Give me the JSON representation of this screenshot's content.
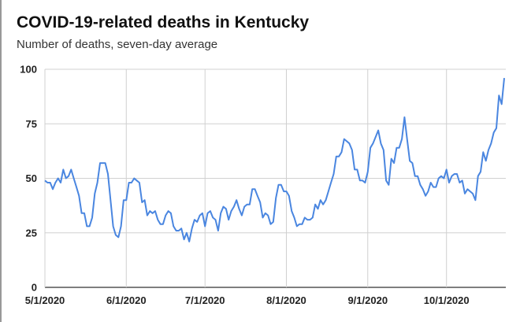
{
  "chart_data": {
    "type": "line",
    "title": "COVID-19-related deaths in Kentucky",
    "subtitle": "Number of deaths, seven-day average",
    "xlabel": "",
    "ylabel": "",
    "ylim": [
      0,
      100
    ],
    "xlim": [
      "2020-05-01",
      "2020-10-23"
    ],
    "yticks": [
      0,
      25,
      50,
      75,
      100
    ],
    "ytick_labels": [
      "0",
      "25",
      "50",
      "75",
      "100"
    ],
    "xticks": [
      "2020-05-01",
      "2020-06-01",
      "2020-07-01",
      "2020-08-01",
      "2020-09-01",
      "2020-10-01"
    ],
    "xtick_labels": [
      "5/1/2020",
      "6/1/2020",
      "7/1/2020",
      "8/1/2020",
      "9/1/2020",
      "10/1/2020"
    ],
    "grid": true,
    "legend": "none",
    "colors": {
      "line": "#4a86e0",
      "grid": "#d0d0d0",
      "axis": "#333333"
    },
    "series": [
      {
        "points": [
          [
            "2020-05-01",
            49
          ],
          [
            "2020-05-02",
            48
          ],
          [
            "2020-05-03",
            48
          ],
          [
            "2020-05-04",
            45
          ],
          [
            "2020-05-05",
            48
          ],
          [
            "2020-05-06",
            50
          ],
          [
            "2020-05-07",
            48
          ],
          [
            "2020-05-08",
            54
          ],
          [
            "2020-05-09",
            50
          ],
          [
            "2020-05-10",
            51
          ],
          [
            "2020-05-11",
            54
          ],
          [
            "2020-05-12",
            50
          ],
          [
            "2020-05-13",
            46
          ],
          [
            "2020-05-14",
            42
          ],
          [
            "2020-05-15",
            34
          ],
          [
            "2020-05-16",
            34
          ],
          [
            "2020-05-17",
            28
          ],
          [
            "2020-05-18",
            28
          ],
          [
            "2020-05-19",
            32
          ],
          [
            "2020-05-20",
            43
          ],
          [
            "2020-05-21",
            48
          ],
          [
            "2020-05-22",
            57
          ],
          [
            "2020-05-23",
            57
          ],
          [
            "2020-05-24",
            57
          ],
          [
            "2020-05-25",
            52
          ],
          [
            "2020-05-26",
            40
          ],
          [
            "2020-05-27",
            28
          ],
          [
            "2020-05-28",
            24
          ],
          [
            "2020-05-29",
            23
          ],
          [
            "2020-05-30",
            28
          ],
          [
            "2020-05-31",
            40
          ],
          [
            "2020-06-01",
            40
          ],
          [
            "2020-06-02",
            48
          ],
          [
            "2020-06-03",
            48
          ],
          [
            "2020-06-04",
            50
          ],
          [
            "2020-06-05",
            49
          ],
          [
            "2020-06-06",
            48
          ],
          [
            "2020-06-07",
            39
          ],
          [
            "2020-06-08",
            40
          ],
          [
            "2020-06-09",
            33
          ],
          [
            "2020-06-10",
            35
          ],
          [
            "2020-06-11",
            34
          ],
          [
            "2020-06-12",
            35
          ],
          [
            "2020-06-13",
            31
          ],
          [
            "2020-06-14",
            29
          ],
          [
            "2020-06-15",
            29
          ],
          [
            "2020-06-16",
            33
          ],
          [
            "2020-06-17",
            35
          ],
          [
            "2020-06-18",
            34
          ],
          [
            "2020-06-19",
            28
          ],
          [
            "2020-06-20",
            26
          ],
          [
            "2020-06-21",
            26
          ],
          [
            "2020-06-22",
            27
          ],
          [
            "2020-06-23",
            22
          ],
          [
            "2020-06-24",
            25
          ],
          [
            "2020-06-25",
            21
          ],
          [
            "2020-06-26",
            27
          ],
          [
            "2020-06-27",
            31
          ],
          [
            "2020-06-28",
            30
          ],
          [
            "2020-06-29",
            33
          ],
          [
            "2020-06-30",
            34
          ],
          [
            "2020-07-01",
            28
          ],
          [
            "2020-07-02",
            34
          ],
          [
            "2020-07-03",
            35
          ],
          [
            "2020-07-04",
            32
          ],
          [
            "2020-07-05",
            31
          ],
          [
            "2020-07-06",
            26
          ],
          [
            "2020-07-07",
            34
          ],
          [
            "2020-07-08",
            37
          ],
          [
            "2020-07-09",
            36
          ],
          [
            "2020-07-10",
            31
          ],
          [
            "2020-07-11",
            35
          ],
          [
            "2020-07-12",
            37
          ],
          [
            "2020-07-13",
            40
          ],
          [
            "2020-07-14",
            36
          ],
          [
            "2020-07-15",
            33
          ],
          [
            "2020-07-16",
            37
          ],
          [
            "2020-07-17",
            38
          ],
          [
            "2020-07-18",
            38
          ],
          [
            "2020-07-19",
            45
          ],
          [
            "2020-07-20",
            45
          ],
          [
            "2020-07-21",
            42
          ],
          [
            "2020-07-22",
            39
          ],
          [
            "2020-07-23",
            32
          ],
          [
            "2020-07-24",
            34
          ],
          [
            "2020-07-25",
            33
          ],
          [
            "2020-07-26",
            29
          ],
          [
            "2020-07-27",
            30
          ],
          [
            "2020-07-28",
            41
          ],
          [
            "2020-07-29",
            47
          ],
          [
            "2020-07-30",
            47
          ],
          [
            "2020-07-31",
            44
          ],
          [
            "2020-08-01",
            44
          ],
          [
            "2020-08-02",
            42
          ],
          [
            "2020-08-03",
            35
          ],
          [
            "2020-08-04",
            32
          ],
          [
            "2020-08-05",
            28
          ],
          [
            "2020-08-06",
            29
          ],
          [
            "2020-08-07",
            29
          ],
          [
            "2020-08-08",
            32
          ],
          [
            "2020-08-09",
            31
          ],
          [
            "2020-08-10",
            31
          ],
          [
            "2020-08-11",
            32
          ],
          [
            "2020-08-12",
            38
          ],
          [
            "2020-08-13",
            36
          ],
          [
            "2020-08-14",
            40
          ],
          [
            "2020-08-15",
            38
          ],
          [
            "2020-08-16",
            40
          ],
          [
            "2020-08-17",
            44
          ],
          [
            "2020-08-18",
            48
          ],
          [
            "2020-08-19",
            52
          ],
          [
            "2020-08-20",
            60
          ],
          [
            "2020-08-21",
            60
          ],
          [
            "2020-08-22",
            62
          ],
          [
            "2020-08-23",
            68
          ],
          [
            "2020-08-24",
            67
          ],
          [
            "2020-08-25",
            66
          ],
          [
            "2020-08-26",
            63
          ],
          [
            "2020-08-27",
            54
          ],
          [
            "2020-08-28",
            54
          ],
          [
            "2020-08-29",
            49
          ],
          [
            "2020-08-30",
            49
          ],
          [
            "2020-08-31",
            48
          ],
          [
            "2020-09-01",
            53
          ],
          [
            "2020-09-02",
            64
          ],
          [
            "2020-09-03",
            66
          ],
          [
            "2020-09-04",
            69
          ],
          [
            "2020-09-05",
            72
          ],
          [
            "2020-09-06",
            66
          ],
          [
            "2020-09-07",
            63
          ],
          [
            "2020-09-08",
            49
          ],
          [
            "2020-09-09",
            47
          ],
          [
            "2020-09-10",
            59
          ],
          [
            "2020-09-11",
            57
          ],
          [
            "2020-09-12",
            64
          ],
          [
            "2020-09-13",
            64
          ],
          [
            "2020-09-14",
            68
          ],
          [
            "2020-09-15",
            78
          ],
          [
            "2020-09-16",
            68
          ],
          [
            "2020-09-17",
            58
          ],
          [
            "2020-09-18",
            57
          ],
          [
            "2020-09-19",
            51
          ],
          [
            "2020-09-20",
            51
          ],
          [
            "2020-09-21",
            47
          ],
          [
            "2020-09-22",
            45
          ],
          [
            "2020-09-23",
            42
          ],
          [
            "2020-09-24",
            44
          ],
          [
            "2020-09-25",
            48
          ],
          [
            "2020-09-26",
            46
          ],
          [
            "2020-09-27",
            46
          ],
          [
            "2020-09-28",
            50
          ],
          [
            "2020-09-29",
            51
          ],
          [
            "2020-09-30",
            50
          ],
          [
            "2020-10-01",
            54
          ],
          [
            "2020-10-02",
            48
          ],
          [
            "2020-10-03",
            51
          ],
          [
            "2020-10-04",
            52
          ],
          [
            "2020-10-05",
            52
          ],
          [
            "2020-10-06",
            48
          ],
          [
            "2020-10-07",
            49
          ],
          [
            "2020-10-08",
            43
          ],
          [
            "2020-10-09",
            45
          ],
          [
            "2020-10-10",
            44
          ],
          [
            "2020-10-11",
            43
          ],
          [
            "2020-10-12",
            40
          ],
          [
            "2020-10-13",
            51
          ],
          [
            "2020-10-14",
            53
          ],
          [
            "2020-10-15",
            62
          ],
          [
            "2020-10-16",
            58
          ],
          [
            "2020-10-17",
            63
          ],
          [
            "2020-10-18",
            66
          ],
          [
            "2020-10-19",
            71
          ],
          [
            "2020-10-20",
            73
          ],
          [
            "2020-10-21",
            88
          ],
          [
            "2020-10-22",
            84
          ],
          [
            "2020-10-23",
            96
          ]
        ]
      }
    ]
  }
}
